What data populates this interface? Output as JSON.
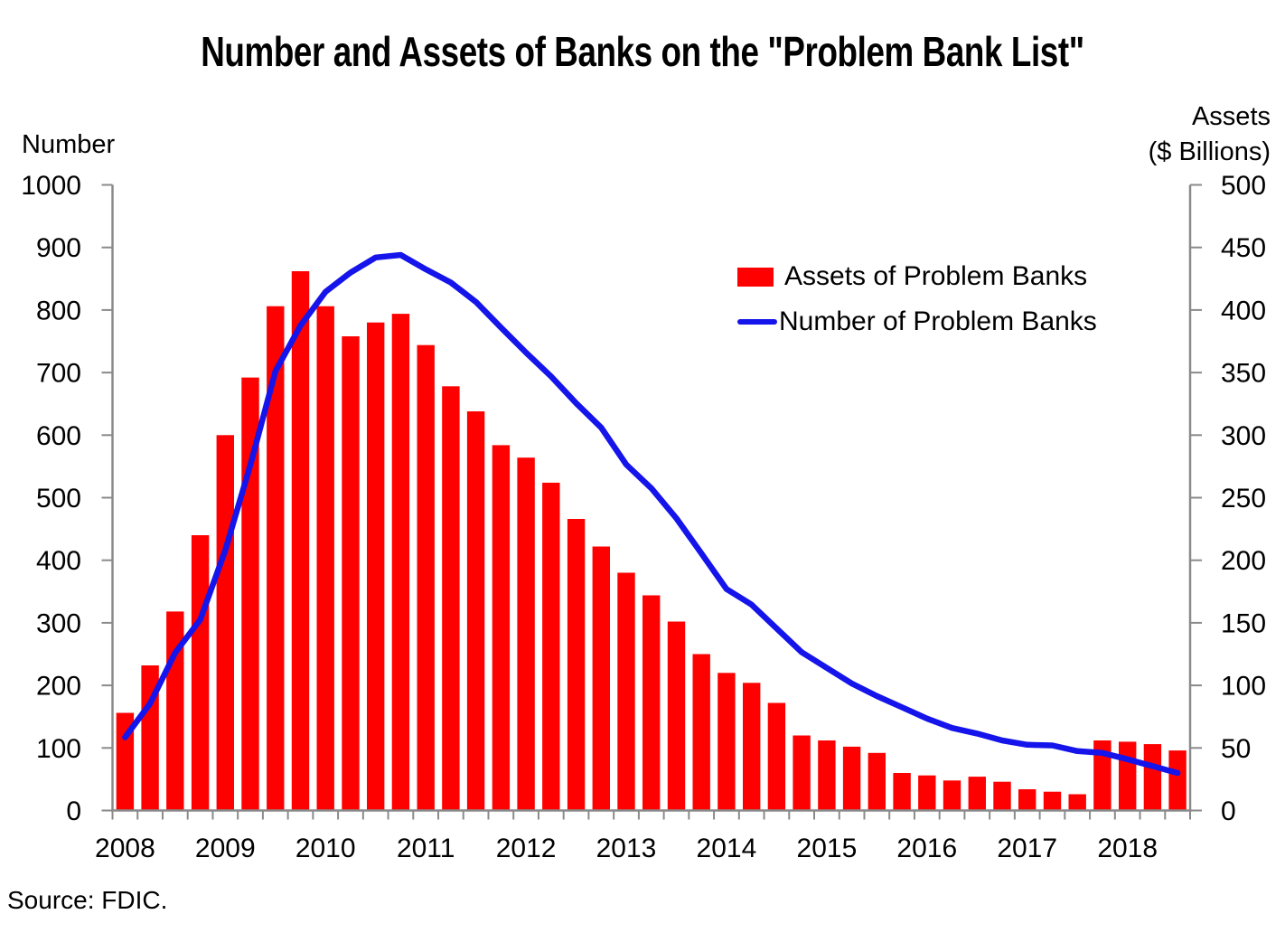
{
  "title": "Number and Assets of Banks on the \"Problem Bank List\"",
  "left_axis_title": "Number",
  "right_axis_title_line1": "Assets",
  "right_axis_title_line2": "($ Billions)",
  "legend": {
    "assets_label": "Assets of Problem Banks",
    "number_label": "Number of Problem Banks"
  },
  "source_note": "Source: FDIC.",
  "colors": {
    "bar": "#FF0000",
    "line": "#1414EB",
    "axis": "#8A8A8A",
    "text": "#000000"
  },
  "chart_data": {
    "type": "combo bar+line, dual axis",
    "grid": false,
    "legend_position": "inside plot, upper right",
    "x_year_tick_labels": [
      "2008",
      "2009",
      "2010",
      "2011",
      "2012",
      "2013",
      "2014",
      "2015",
      "2016",
      "2017",
      "2018"
    ],
    "x_quarters": [
      "2008 Q2",
      "2008 Q3",
      "2008 Q4",
      "2009 Q1",
      "2009 Q2",
      "2009 Q3",
      "2009 Q4",
      "2010 Q1",
      "2010 Q2",
      "2010 Q3",
      "2010 Q4",
      "2011 Q1",
      "2011 Q2",
      "2011 Q3",
      "2011 Q4",
      "2012 Q1",
      "2012 Q2",
      "2012 Q3",
      "2012 Q4",
      "2013 Q1",
      "2013 Q2",
      "2013 Q3",
      "2013 Q4",
      "2014 Q1",
      "2014 Q2",
      "2014 Q3",
      "2014 Q4",
      "2015 Q1",
      "2015 Q2",
      "2015 Q3",
      "2015 Q4",
      "2016 Q1",
      "2016 Q2",
      "2016 Q3",
      "2016 Q4",
      "2017 Q1",
      "2017 Q2",
      "2017 Q3",
      "2017 Q4",
      "2018 Q1",
      "2018 Q2",
      "2018 Q3",
      "2018 Q4"
    ],
    "left_axis": {
      "label": "Number",
      "min": 0,
      "max": 1000,
      "step": 100,
      "ticks": [
        0,
        100,
        200,
        300,
        400,
        500,
        600,
        700,
        800,
        900,
        1000
      ]
    },
    "right_axis": {
      "label": "Assets ($ Billions)",
      "min": 0,
      "max": 500,
      "step": 50,
      "ticks": [
        0,
        50,
        100,
        150,
        200,
        250,
        300,
        350,
        400,
        450,
        500
      ]
    },
    "series": [
      {
        "name": "Assets of Problem Banks",
        "type": "bar",
        "axis": "right",
        "color": "#FF0000",
        "values": [
          78,
          116,
          159,
          220,
          300,
          346,
          403,
          431,
          403,
          379,
          390,
          397,
          372,
          339,
          319,
          292,
          282,
          262,
          233,
          211,
          190,
          172,
          151,
          125,
          110,
          102,
          86,
          60,
          56,
          51,
          46,
          30,
          28,
          24,
          27,
          23,
          17,
          15,
          13,
          56,
          55,
          53,
          48
        ]
      },
      {
        "name": "Number of Problem Banks",
        "type": "line",
        "axis": "left",
        "color": "#1414EB",
        "values": [
          117,
          171,
          252,
          305,
          416,
          552,
          702,
          775,
          829,
          860,
          884,
          888,
          865,
          844,
          813,
          772,
          732,
          694,
          651,
          612,
          553,
          515,
          467,
          411,
          354,
          329,
          291,
          253,
          228,
          203,
          183,
          165,
          147,
          132,
          123,
          112,
          105,
          104,
          95,
          92,
          82,
          71,
          60
        ]
      }
    ]
  }
}
